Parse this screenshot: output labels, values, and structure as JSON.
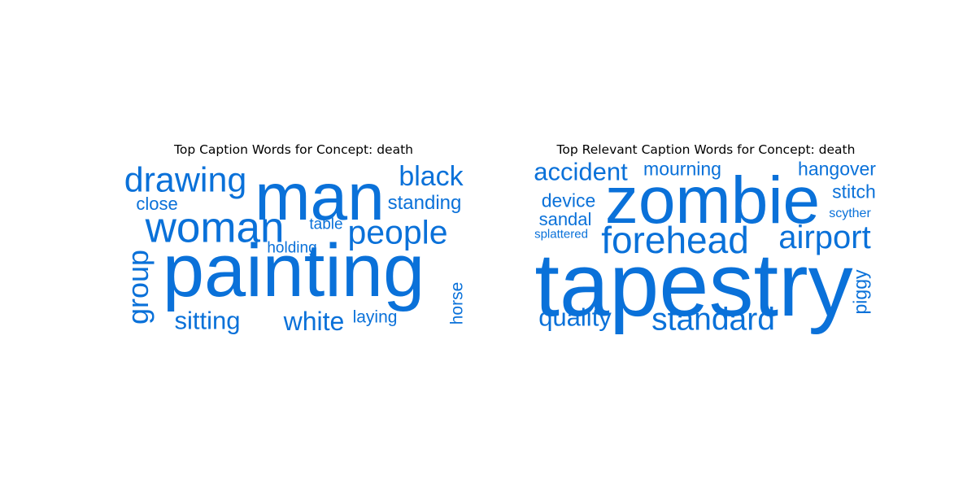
{
  "chart_data": [
    {
      "type": "wordcloud",
      "title": "Top Caption Words for Concept: death",
      "color": "#0a71d9",
      "words": [
        {
          "text": "painting"
        },
        {
          "text": "man"
        },
        {
          "text": "woman"
        },
        {
          "text": "drawing"
        },
        {
          "text": "people"
        },
        {
          "text": "black"
        },
        {
          "text": "group",
          "orientation": "vertical"
        },
        {
          "text": "white"
        },
        {
          "text": "sitting"
        },
        {
          "text": "standing"
        },
        {
          "text": "close"
        },
        {
          "text": "holding"
        },
        {
          "text": "laying"
        },
        {
          "text": "table"
        },
        {
          "text": "horse",
          "orientation": "vertical"
        }
      ]
    },
    {
      "type": "wordcloud",
      "title": "Top Relevant Caption Words for Concept: death",
      "color": "#0a71d9",
      "words": [
        {
          "text": "tapestry"
        },
        {
          "text": "zombie"
        },
        {
          "text": "forehead"
        },
        {
          "text": "airport"
        },
        {
          "text": "standard"
        },
        {
          "text": "accident"
        },
        {
          "text": "quality"
        },
        {
          "text": "mourning"
        },
        {
          "text": "hangover"
        },
        {
          "text": "stitch"
        },
        {
          "text": "device"
        },
        {
          "text": "sandal"
        },
        {
          "text": "piggy",
          "orientation": "vertical"
        },
        {
          "text": "scyther"
        },
        {
          "text": "splattered"
        }
      ]
    }
  ]
}
